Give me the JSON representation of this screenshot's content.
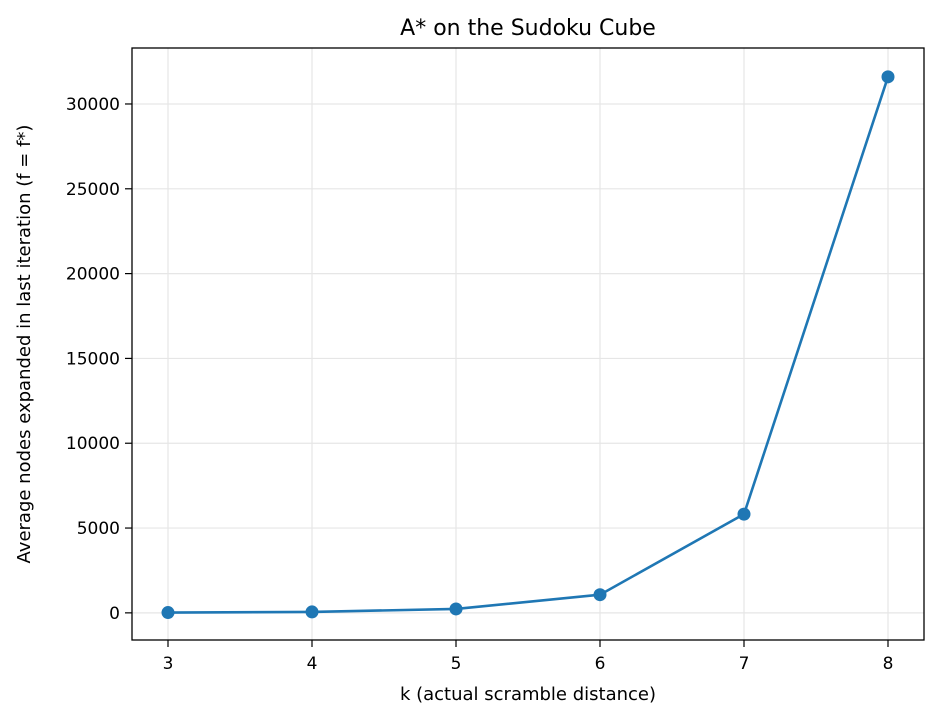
{
  "chart_data": {
    "type": "line",
    "title": "A* on the Sudoku Cube",
    "xlabel": "k (actual scramble distance)",
    "ylabel": "Average nodes expanded in last iteration (f = f*)",
    "x": [
      3,
      4,
      5,
      6,
      7,
      8
    ],
    "series": [
      {
        "values": [
          18,
          55,
          230,
          1070,
          5820,
          31600
        ]
      }
    ],
    "xlim": [
      2.75,
      8.25
    ],
    "ylim": [
      -1600,
      33300
    ],
    "xticks": [
      3,
      4,
      5,
      6,
      7,
      8
    ],
    "yticks": [
      0,
      5000,
      10000,
      15000,
      20000,
      25000,
      30000
    ],
    "grid": true,
    "marker": "circle",
    "colors": {
      "series": "#1f77b4",
      "grid": "#e6e6e6",
      "axes": "#000000"
    }
  }
}
